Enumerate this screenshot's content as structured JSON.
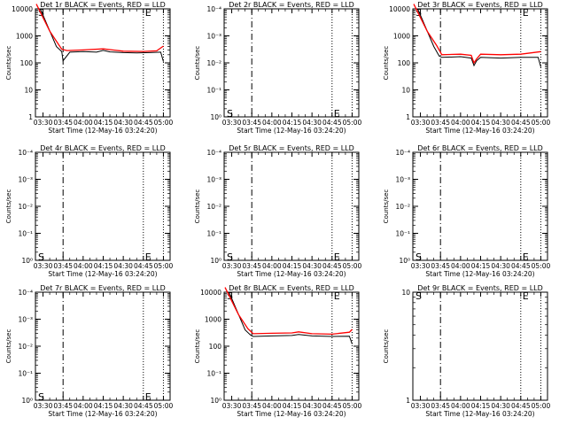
{
  "colors": {
    "events": "#000000",
    "lld": "#ff0000",
    "axes": "#000000",
    "background": "#ffffff"
  },
  "chart_data": [
    {
      "type": "line",
      "title": "Det 1r BLACK = Events, RED = LLD",
      "xlabel": "Start Time (12-May-16 03:24:20)",
      "ylabel": "Counts/sec",
      "xlim": [
        "03:24:20",
        "05:05"
      ],
      "ylog": true,
      "ylim": [
        1,
        10000
      ],
      "yticks": [
        "1",
        "10",
        "100",
        "1000",
        "10000"
      ],
      "xticks": [
        "03:30",
        "03:45",
        "04:00",
        "04:15",
        "04:30",
        "04:45",
        "05:00"
      ],
      "markers": {
        "dashdot": "03:45",
        "dotted": [
          "04:45",
          "05:00"
        ]
      },
      "annotations": [
        {
          "text": "S",
          "x": "03:25",
          "y": 10000
        },
        {
          "text": "E",
          "x": "04:45",
          "y": 10000
        }
      ],
      "series": [
        {
          "name": "Events",
          "color": "black",
          "x": [
            "03:28",
            "03:40",
            "03:44",
            "03:45",
            "03:50",
            "04:00",
            "04:10",
            "04:15",
            "04:20",
            "04:30",
            "04:40",
            "04:50",
            "04:58",
            "05:00"
          ],
          "y": [
            10000,
            400,
            260,
            120,
            250,
            260,
            250,
            290,
            255,
            240,
            235,
            240,
            250,
            110
          ]
        },
        {
          "name": "LLD",
          "color": "red",
          "x": [
            "03:25",
            "03:35",
            "03:42",
            "03:44",
            "03:48",
            "04:00",
            "04:15",
            "04:30",
            "04:45",
            "04:55",
            "05:00"
          ],
          "y": [
            15000,
            1500,
            450,
            320,
            285,
            300,
            330,
            270,
            265,
            280,
            420
          ]
        }
      ]
    },
    {
      "type": "line",
      "title": "Det 2r BLACK = Events, RED = LLD",
      "xlabel": "Start Time (12-May-16 03:24:20)",
      "ylabel": "Counts/sec",
      "xlim": [
        "03:24:20",
        "05:05"
      ],
      "ylog": true,
      "ylim": [
        1,
        10000
      ],
      "yticks": [
        "10⁰",
        "10⁻¹",
        "10⁻²",
        "10⁻³",
        "10⁻⁴"
      ],
      "xticks": [
        "03:30",
        "03:45",
        "04:00",
        "04:15",
        "04:30",
        "04:45",
        "05:00"
      ],
      "markers": {
        "dashdot": "03:45",
        "dotted": [
          "04:45",
          "05:00"
        ]
      },
      "annotations": [
        {
          "text": "S",
          "x": "03:25",
          "y": 1.8
        },
        {
          "text": "E",
          "x": "04:45",
          "y": 1.8
        }
      ],
      "series": []
    },
    {
      "type": "line",
      "title": "Det 3r BLACK = Events, RED = LLD",
      "xlabel": "Start Time (12-May-16 03:24:20)",
      "ylabel": "Counts/sec",
      "xlim": [
        "03:24:20",
        "05:05"
      ],
      "ylog": true,
      "ylim": [
        1,
        10000
      ],
      "yticks": [
        "1",
        "10",
        "100",
        "1000",
        "10000"
      ],
      "xticks": [
        "03:30",
        "03:45",
        "04:00",
        "04:15",
        "04:30",
        "04:45",
        "05:00"
      ],
      "markers": {
        "dashdot": "03:45",
        "dotted": [
          "04:45",
          "05:00"
        ]
      },
      "annotations": [
        {
          "text": "S",
          "x": "03:25",
          "y": 10000
        },
        {
          "text": "E",
          "x": "04:45",
          "y": 10000
        }
      ],
      "series": [
        {
          "name": "Events",
          "color": "black",
          "x": [
            "03:28",
            "03:40",
            "03:44",
            "03:46",
            "04:00",
            "04:08",
            "04:10",
            "04:12",
            "04:15",
            "04:30",
            "04:45",
            "04:58",
            "05:00"
          ],
          "y": [
            10000,
            400,
            180,
            160,
            170,
            150,
            80,
            120,
            160,
            150,
            160,
            160,
            70
          ]
        },
        {
          "name": "LLD",
          "color": "red",
          "x": [
            "03:25",
            "03:35",
            "03:42",
            "03:46",
            "04:00",
            "04:08",
            "04:10",
            "04:12",
            "04:15",
            "04:30",
            "04:45",
            "05:00"
          ],
          "y": [
            15000,
            1500,
            450,
            200,
            210,
            190,
            100,
            140,
            210,
            200,
            210,
            260
          ]
        }
      ]
    },
    {
      "type": "line",
      "title": "Det 4r BLACK = Events, RED = LLD",
      "xlabel": "Start Time (12-May-16 03:24:20)",
      "ylabel": "Counts/sec",
      "xlim": [
        "03:24:20",
        "05:05"
      ],
      "ylog": true,
      "ylim": [
        1,
        10000
      ],
      "yticks": [
        "10⁰",
        "10⁻¹",
        "10⁻²",
        "10⁻³",
        "10⁻⁴"
      ],
      "xticks": [
        "03:30",
        "03:45",
        "04:00",
        "04:15",
        "04:30",
        "04:45",
        "05:00"
      ],
      "markers": {
        "dashdot": "03:45",
        "dotted": [
          "04:45",
          "05:00"
        ]
      },
      "annotations": [
        {
          "text": "S",
          "x": "03:25",
          "y": 1.8
        },
        {
          "text": "E",
          "x": "04:45",
          "y": 1.8
        }
      ],
      "series": []
    },
    {
      "type": "line",
      "title": "Det 5r BLACK = Events, RED = LLD",
      "xlabel": "Start Time (12-May-16 03:24:20)",
      "ylabel": "Counts/sec",
      "xlim": [
        "03:24:20",
        "05:05"
      ],
      "ylog": true,
      "ylim": [
        1,
        10000
      ],
      "yticks": [
        "10⁰",
        "10⁻¹",
        "10⁻²",
        "10⁻³",
        "10⁻⁴"
      ],
      "xticks": [
        "03:30",
        "03:45",
        "04:00",
        "04:15",
        "04:30",
        "04:45",
        "05:00"
      ],
      "markers": {
        "dashdot": "03:45",
        "dotted": [
          "04:45",
          "05:00"
        ]
      },
      "annotations": [
        {
          "text": "S",
          "x": "03:25",
          "y": 1.8
        },
        {
          "text": "E",
          "x": "04:45",
          "y": 1.8
        }
      ],
      "series": []
    },
    {
      "type": "line",
      "title": "Det 6r BLACK = Events, RED = LLD",
      "xlabel": "Start Time (12-May-16 03:24:20)",
      "ylabel": "Counts/sec",
      "xlim": [
        "03:24:20",
        "05:05"
      ],
      "ylog": true,
      "ylim": [
        1,
        10000
      ],
      "yticks": [
        "10⁰",
        "10⁻¹",
        "10⁻²",
        "10⁻³",
        "10⁻⁴"
      ],
      "xticks": [
        "03:30",
        "03:45",
        "04:00",
        "04:15",
        "04:30",
        "04:45",
        "05:00"
      ],
      "markers": {
        "dashdot": "03:45",
        "dotted": [
          "04:45",
          "05:00"
        ]
      },
      "annotations": [
        {
          "text": "S",
          "x": "03:25",
          "y": 1.8
        },
        {
          "text": "E",
          "x": "04:45",
          "y": 1.8
        }
      ],
      "series": []
    },
    {
      "type": "line",
      "title": "Det 7r BLACK = Events, RED = LLD",
      "xlabel": "Start Time (12-May-16 03:24:20)",
      "ylabel": "Counts/sec",
      "xlim": [
        "03:24:20",
        "05:05"
      ],
      "ylog": true,
      "ylim": [
        1,
        10000
      ],
      "yticks": [
        "10⁰",
        "10⁻¹",
        "10⁻²",
        "10⁻³",
        "10⁻⁴"
      ],
      "xticks": [
        "03:30",
        "03:45",
        "04:00",
        "04:15",
        "04:30",
        "04:45",
        "05:00"
      ],
      "markers": {
        "dashdot": "03:45",
        "dotted": [
          "04:45",
          "05:00"
        ]
      },
      "annotations": [
        {
          "text": "S",
          "x": "03:25",
          "y": 1.8
        },
        {
          "text": "E",
          "x": "04:45",
          "y": 1.8
        }
      ],
      "series": []
    },
    {
      "type": "line",
      "title": "Det 8r BLACK = Events, RED = LLD",
      "xlabel": "Start Time (12-May-16 03:24:20)",
      "ylabel": "Counts/sec",
      "xlim": [
        "03:24:20",
        "05:05"
      ],
      "ylog": true,
      "ylim": [
        1,
        10000
      ],
      "yticks": [
        "10⁰",
        "10⁻¹",
        "100",
        "1000",
        "10000"
      ],
      "xticks": [
        "03:30",
        "03:45",
        "04:00",
        "04:15",
        "04:30",
        "04:45",
        "05:00"
      ],
      "markers": {
        "dashdot": "03:45",
        "dotted": [
          "04:45",
          "05:00"
        ]
      },
      "annotations": [
        {
          "text": "S",
          "x": "03:25",
          "y": 10000
        },
        {
          "text": "E",
          "x": "04:45",
          "y": 10000
        }
      ],
      "series": [
        {
          "name": "Events",
          "color": "black",
          "x": [
            "03:28",
            "03:40",
            "03:44",
            "03:46",
            "04:00",
            "04:15",
            "04:20",
            "04:30",
            "04:45",
            "04:58",
            "05:00"
          ],
          "y": [
            10000,
            400,
            260,
            230,
            240,
            250,
            270,
            240,
            230,
            235,
            120
          ]
        },
        {
          "name": "LLD",
          "color": "red",
          "x": [
            "03:25",
            "03:35",
            "03:42",
            "03:46",
            "04:00",
            "04:15",
            "04:20",
            "04:30",
            "04:45",
            "04:58",
            "05:00"
          ],
          "y": [
            15000,
            1500,
            450,
            290,
            300,
            310,
            340,
            290,
            280,
            330,
            420
          ]
        }
      ]
    },
    {
      "type": "line",
      "title": "Det 9r BLACK = Events, RED = LLD",
      "xlabel": "Start Time (12-May-16 03:24:20)",
      "ylabel": "Counts/sec",
      "xlim": [
        "03:24:20",
        "05:05"
      ],
      "ylog": true,
      "ylim": [
        1,
        10
      ],
      "yticks": [
        "1",
        "10"
      ],
      "xticks": [
        "03:30",
        "03:45",
        "04:00",
        "04:15",
        "04:30",
        "04:45",
        "05:00"
      ],
      "markers": {
        "dashdot": "03:45",
        "dotted": [
          "04:45",
          "05:00"
        ]
      },
      "annotations": [
        {
          "text": "S",
          "x": "03:25",
          "y": 10
        },
        {
          "text": "E",
          "x": "04:45",
          "y": 10
        }
      ],
      "series": []
    }
  ]
}
